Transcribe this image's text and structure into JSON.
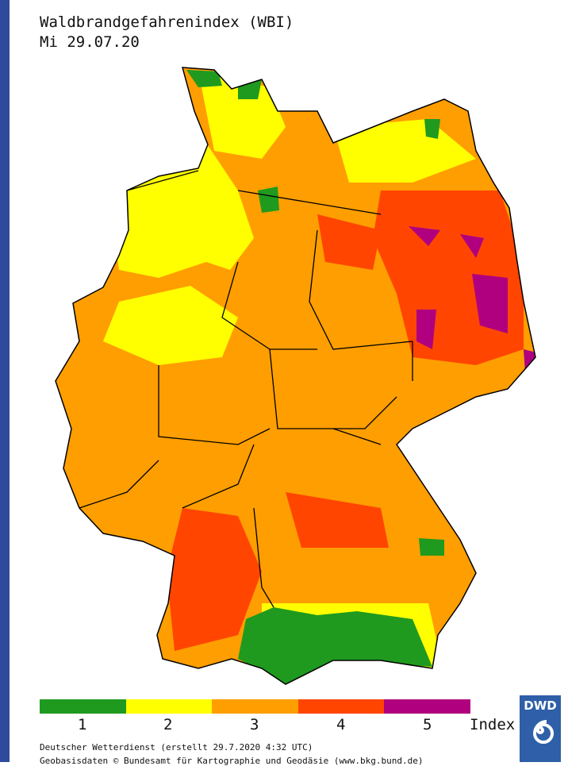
{
  "header": {
    "title": "Waldbrandgefahrenindex (WBI)",
    "date": "Mi 29.07.20"
  },
  "legend": {
    "levels": [
      {
        "label": "1",
        "color": "#1f9a1f"
      },
      {
        "label": "2",
        "color": "#ffff00"
      },
      {
        "label": "3",
        "color": "#ff9e00"
      },
      {
        "label": "4",
        "color": "#ff4500"
      },
      {
        "label": "5",
        "color": "#b0007f"
      }
    ],
    "unit": "Index"
  },
  "footer": {
    "line1": "Deutscher Wetterdienst (erstellt 29.7.2020 4:32 UTC)",
    "line2": "Geobasisdaten © Bundesamt für Kartographie und Geodäsie (www.bkg.bund.de)"
  },
  "logo": {
    "text": "DWD"
  },
  "accent_color": "#2e4a9c"
}
